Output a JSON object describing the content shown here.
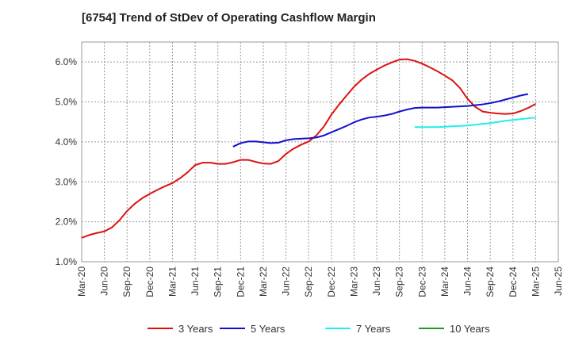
{
  "chart_data": {
    "type": "line",
    "title": "[6754]  Trend of StDev of Operating Cashflow Margin",
    "xlabel": "",
    "ylabel": "",
    "x_tick_labels": [
      "Mar-20",
      "Jun-20",
      "Sep-20",
      "Dec-20",
      "Mar-21",
      "Jun-21",
      "Sep-21",
      "Dec-21",
      "Mar-22",
      "Jun-22",
      "Sep-22",
      "Dec-22",
      "Mar-23",
      "Jun-23",
      "Sep-23",
      "Dec-23",
      "Mar-24",
      "Jun-24",
      "Sep-24",
      "Dec-24",
      "Mar-25",
      "Jun-25"
    ],
    "y_ticks": [
      1.0,
      2.0,
      3.0,
      4.0,
      5.0,
      6.0
    ],
    "y_tick_labels": [
      "1.0%",
      "2.0%",
      "3.0%",
      "4.0%",
      "5.0%",
      "6.0%"
    ],
    "ylim": [
      1.0,
      6.5
    ],
    "grid": true,
    "legend_position": "bottom",
    "series": [
      {
        "name": "3 Years",
        "color": "#dd1111",
        "start_index": 0,
        "values": [
          1.6,
          1.67,
          1.72,
          1.76,
          1.86,
          2.04,
          2.27,
          2.45,
          2.59,
          2.7,
          2.8,
          2.89,
          2.97,
          3.09,
          3.24,
          3.42,
          3.48,
          3.48,
          3.45,
          3.45,
          3.49,
          3.55,
          3.55,
          3.5,
          3.46,
          3.45,
          3.52,
          3.7,
          3.83,
          3.93,
          4.01,
          4.16,
          4.38,
          4.68,
          4.93,
          5.16,
          5.38,
          5.56,
          5.7,
          5.81,
          5.91,
          5.99,
          6.06,
          6.07,
          6.03,
          5.96,
          5.87,
          5.77,
          5.66,
          5.54,
          5.35,
          5.08,
          4.88,
          4.76,
          4.73,
          4.71,
          4.7,
          4.71,
          4.77,
          4.85,
          4.95
        ]
      },
      {
        "name": "5 Years",
        "color": "#1111cc",
        "start_index": 20,
        "values": [
          3.88,
          3.97,
          4.01,
          4.01,
          3.99,
          3.97,
          3.98,
          4.04,
          4.07,
          4.08,
          4.09,
          4.11,
          4.16,
          4.24,
          4.32,
          4.4,
          4.49,
          4.56,
          4.61,
          4.63,
          4.66,
          4.7,
          4.76,
          4.81,
          4.85,
          4.86,
          4.86,
          4.86,
          4.87,
          4.88,
          4.89,
          4.9,
          4.92,
          4.94,
          4.97,
          5.01,
          5.06,
          5.11,
          5.16,
          5.2
        ]
      },
      {
        "name": "7 Years",
        "color": "#22eeee",
        "start_index": 44,
        "values": [
          4.37,
          4.37,
          4.37,
          4.37,
          4.38,
          4.39,
          4.4,
          4.41,
          4.43,
          4.45,
          4.47,
          4.5,
          4.53,
          4.55,
          4.57,
          4.59,
          4.61
        ]
      },
      {
        "name": "10 Years",
        "color": "#229922",
        "start_index": 0,
        "values": []
      }
    ]
  }
}
